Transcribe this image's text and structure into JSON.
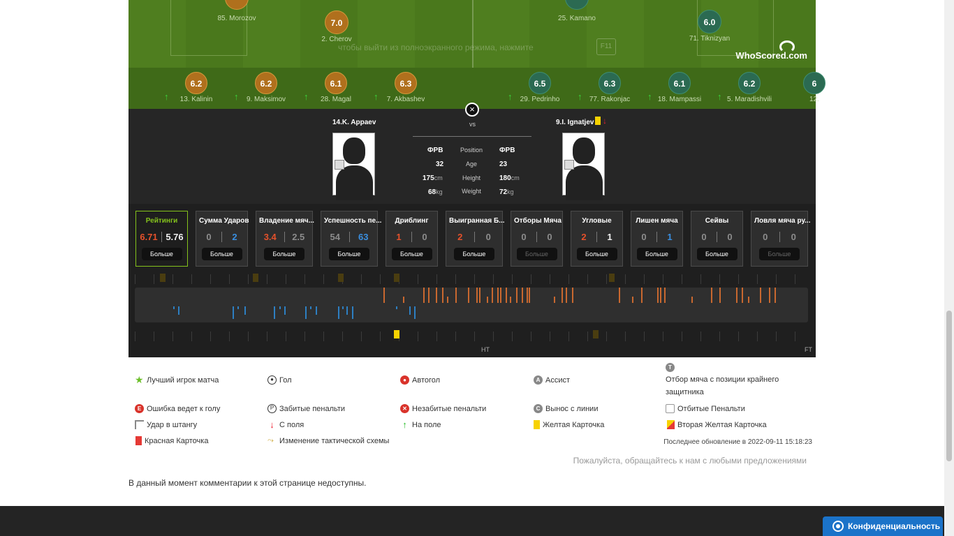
{
  "pitch": {
    "top_players": [
      {
        "name": "85. Morozov",
        "rating": ""
      },
      {
        "name": "2. Cherov",
        "rating": "7.0"
      },
      {
        "name": "25. Kamano",
        "rating": ""
      },
      {
        "name": "71. Tiknizyan",
        "rating": "6.0"
      }
    ],
    "overlay_text": "чтобы выйти из полноэкранного режима, нажмите",
    "overlay_key": "F11",
    "brand": "WhoScored.com"
  },
  "subs": [
    {
      "name": "13. Kalinin",
      "rating": "6.2",
      "team": "home"
    },
    {
      "name": "9. Maksimov",
      "rating": "6.2",
      "team": "home"
    },
    {
      "name": "28. Magal",
      "rating": "6.1",
      "team": "home"
    },
    {
      "name": "7. Akbashev",
      "rating": "6.3",
      "team": "home"
    },
    {
      "name": "29. Pedrinho",
      "rating": "6.5",
      "team": "away"
    },
    {
      "name": "77. Rakonjac",
      "rating": "6.3",
      "team": "away"
    },
    {
      "name": "18. Mampassi",
      "rating": "6.1",
      "team": "away"
    },
    {
      "name": "5. Maradishvili",
      "rating": "6.2",
      "team": "away"
    },
    {
      "name": "12.",
      "rating": "6",
      "team": "away"
    }
  ],
  "compare": {
    "close_icon": "×",
    "left_player": "14.K. Appaev",
    "right_player": "9.I. Ignatjev",
    "vs": "vs",
    "labels": [
      "Position",
      "Age",
      "Height",
      "Weight"
    ],
    "left": {
      "position": "ФРВ",
      "age": "32",
      "height": "175",
      "weight": "68"
    },
    "right": {
      "position": "ФРВ",
      "age": "23",
      "height": "180",
      "weight": "72"
    },
    "units": {
      "height": "cm",
      "weight": "kg"
    }
  },
  "tiles": [
    {
      "title": "Рейтинги",
      "left": "6.71",
      "right": "5.76",
      "lc": "red",
      "rc": "white",
      "more": "Больше",
      "active": true
    },
    {
      "title": "Сумма Ударов",
      "left": "0",
      "right": "2",
      "lc": "grey",
      "rc": "blue",
      "more": "Больше"
    },
    {
      "title": "Владение мяч...",
      "left": "3.4",
      "right": "2.5",
      "lc": "red",
      "rc": "grey",
      "more": "Больше"
    },
    {
      "title": "Успешность пе...",
      "left": "54",
      "right": "63",
      "lc": "grey",
      "rc": "blue",
      "more": "Больше"
    },
    {
      "title": "Дриблинг",
      "left": "1",
      "right": "0",
      "lc": "red",
      "rc": "grey",
      "more": "Больше"
    },
    {
      "title": "Выигранная Б...",
      "left": "2",
      "right": "0",
      "lc": "red",
      "rc": "grey",
      "more": "Больше"
    },
    {
      "title": "Отборы Мяча",
      "left": "0",
      "right": "0",
      "lc": "grey",
      "rc": "grey",
      "more": "Больше",
      "disabled": true
    },
    {
      "title": "Угловые",
      "left": "2",
      "right": "1",
      "lc": "red",
      "rc": "white",
      "more": "Больше"
    },
    {
      "title": "Лишен мяча",
      "left": "0",
      "right": "1",
      "lc": "grey",
      "rc": "blue",
      "more": "Больше"
    },
    {
      "title": "Сейвы",
      "left": "0",
      "right": "0",
      "lc": "grey",
      "rc": "grey",
      "more": "Больше"
    },
    {
      "title": "Ловля мяча ру...",
      "left": "0",
      "right": "0",
      "lc": "grey",
      "rc": "grey",
      "more": "Больше",
      "disabled": true
    }
  ],
  "timeline": {
    "ht": "HT",
    "ft": "FT"
  },
  "legend": {
    "items": [
      {
        "label": "Лучший игрок матча",
        "icon": "star-icon"
      },
      {
        "label": "Гол",
        "icon": "ball-icon"
      },
      {
        "label": "Автогол",
        "icon": "own-goal-icon"
      },
      {
        "label": "Ассист",
        "icon": "assist-icon"
      },
      {
        "label": "Отбор мяча с позиции крайнего защитника",
        "icon": "last-man-tackle-icon"
      },
      {
        "label": "Ошибка ведет к голу",
        "icon": "error-icon"
      },
      {
        "label": "Забитые пенальти",
        "icon": "penalty-scored-icon"
      },
      {
        "label": "Незабитые пенальти",
        "icon": "penalty-missed-icon"
      },
      {
        "label": "Вынос с линии",
        "icon": "clearance-icon"
      },
      {
        "label": "Отбитые Пенальти",
        "icon": "penalty-saved-icon"
      },
      {
        "label": "Удар в штангу",
        "icon": "post-icon"
      },
      {
        "label": "С поля",
        "icon": "sub-off-icon"
      },
      {
        "label": "На поле",
        "icon": "sub-on-icon"
      },
      {
        "label": "Желтая Карточка",
        "icon": "yellow-card-icon"
      },
      {
        "label": "Вторая Желтая Карточка",
        "icon": "second-yellow-icon"
      },
      {
        "label": "Красная Карточка",
        "icon": "red-card-icon"
      },
      {
        "label": "Изменение тактической схемы",
        "icon": "formation-change-icon"
      }
    ],
    "last_update": "Последнее обновление в 2022-09-11 15:18:23",
    "contact": "Пожалуйста, обращайтесь к нам с любыми предложениями"
  },
  "comments_note": "В данный момент комментарии к этой странице недоступны.",
  "privacy_button": "Конфиденциальность"
}
